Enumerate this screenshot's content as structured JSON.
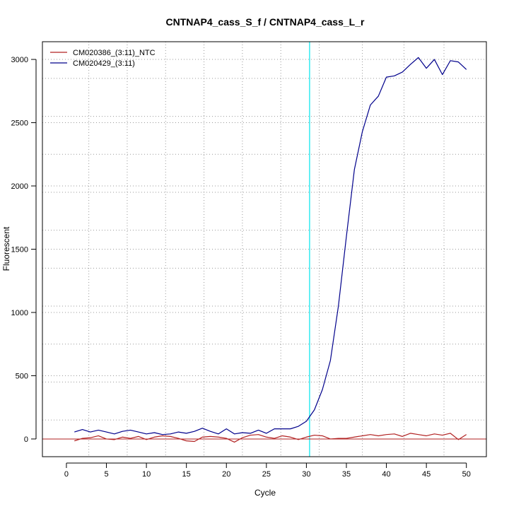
{
  "chart_data": {
    "type": "line",
    "title": "CNTNAP4_cass_S_f / CNTNAP4_cass_L_r",
    "xlabel": "Cycle",
    "ylabel": "Fluorescent",
    "xlim": [
      -3,
      52.5
    ],
    "ylim": [
      -140,
      3140
    ],
    "x_ticks": [
      0,
      5,
      10,
      15,
      20,
      25,
      30,
      35,
      40,
      45,
      50
    ],
    "y_ticks": [
      0,
      500,
      1000,
      1500,
      2000,
      2500,
      3000
    ],
    "minor_x_grid": [
      2.8,
      7.6,
      12.4,
      17.2,
      22.0,
      26.8,
      31.6,
      37.0,
      42.2,
      47.2
    ],
    "minor_y_grid": [
      150,
      450,
      750,
      1050,
      1350,
      1650,
      1950,
      2250,
      2550,
      2850
    ],
    "grid": true,
    "legend_position": "top-left",
    "threshold_cycle": 30.4,
    "threshold_color": "#00e5ee",
    "baseline_y": 0,
    "baseline_color": "#b22222",
    "x": [
      1,
      2,
      3,
      4,
      5,
      6,
      7,
      8,
      9,
      10,
      11,
      12,
      13,
      14,
      15,
      16,
      17,
      18,
      19,
      20,
      21,
      22,
      23,
      24,
      25,
      26,
      27,
      28,
      29,
      30,
      31,
      32,
      33,
      34,
      35,
      36,
      37,
      38,
      39,
      40,
      41,
      42,
      43,
      44,
      45,
      46,
      47,
      48,
      49,
      50
    ],
    "series": [
      {
        "name": "CM020386_(3:11)_NTC",
        "color": "#b22222",
        "values": [
          -15,
          5,
          10,
          25,
          0,
          -5,
          15,
          5,
          20,
          -5,
          15,
          25,
          20,
          5,
          -15,
          -20,
          15,
          20,
          15,
          5,
          -25,
          10,
          30,
          35,
          15,
          5,
          25,
          15,
          -5,
          15,
          30,
          25,
          0,
          5,
          5,
          15,
          25,
          35,
          25,
          35,
          40,
          20,
          45,
          35,
          25,
          40,
          30,
          45,
          -5,
          35
        ]
      },
      {
        "name": "CM020429_(3:11)",
        "color": "#00008b",
        "values": [
          55,
          75,
          55,
          70,
          55,
          40,
          60,
          70,
          55,
          40,
          50,
          35,
          40,
          55,
          45,
          60,
          85,
          60,
          40,
          80,
          40,
          50,
          45,
          70,
          45,
          80,
          80,
          80,
          100,
          140,
          230,
          390,
          620,
          1050,
          1600,
          2130,
          2430,
          2640,
          2710,
          2860,
          2870,
          2900,
          2960,
          3015,
          2930,
          3000,
          2880,
          2990,
          2980,
          2920
        ]
      }
    ]
  }
}
